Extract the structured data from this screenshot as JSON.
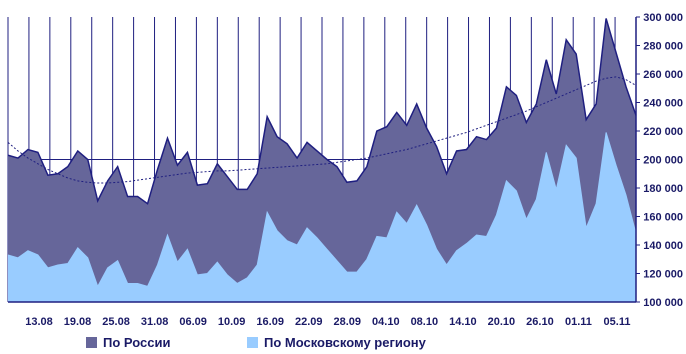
{
  "chart_data": {
    "type": "area",
    "title": "",
    "xlabel": "",
    "ylabel": "",
    "ylim": [
      100000,
      300000
    ],
    "yticks": [
      "100 000",
      "120 000",
      "140 000",
      "160 000",
      "180 000",
      "200 000",
      "220 000",
      "240 000",
      "260 000",
      "280 000",
      "300 000"
    ],
    "xticks": [
      "13.08",
      "19.08",
      "25.08",
      "31.08",
      "06.09",
      "10.09",
      "16.09",
      "22.09",
      "28.09",
      "04.10",
      "08.10",
      "14.10",
      "20.10",
      "26.10",
      "01.11",
      "05.11"
    ],
    "grid": "vertical lines and horizontal line at 200 000 in upper area",
    "legend_position": "bottom",
    "colors": {
      "russia": "#66669a",
      "moscow": "#99ccff",
      "outline": "#1f1f80",
      "trend": "#1f1f80"
    },
    "series": [
      {
        "name": "По России",
        "values": [
          203000,
          201000,
          207000,
          205000,
          189000,
          190000,
          195000,
          206000,
          200000,
          171000,
          185000,
          195000,
          174000,
          174000,
          169000,
          193000,
          215000,
          196000,
          205000,
          182000,
          183000,
          197000,
          188000,
          179000,
          179000,
          190000,
          230000,
          216000,
          211000,
          201000,
          212000,
          206000,
          200000,
          195000,
          184000,
          185000,
          195000,
          220000,
          223000,
          233000,
          224000,
          239000,
          222000,
          209000,
          190000,
          206000,
          207000,
          216000,
          214000,
          222000,
          251000,
          245000,
          226000,
          239000,
          270000,
          246000,
          284000,
          274000,
          228000,
          239000,
          299000,
          275000,
          251000,
          231000
        ]
      },
      {
        "name": "По Московскому региону",
        "values": [
          133000,
          131000,
          136000,
          133000,
          124000,
          126000,
          127000,
          138000,
          131000,
          111000,
          124000,
          129000,
          113000,
          113000,
          111000,
          126000,
          147000,
          128000,
          137000,
          119000,
          120000,
          128000,
          119000,
          113000,
          117000,
          126000,
          163000,
          150000,
          143000,
          140000,
          152000,
          145000,
          137000,
          129000,
          121000,
          121000,
          130000,
          146000,
          145000,
          163000,
          155000,
          168000,
          154000,
          137000,
          126000,
          136000,
          141000,
          147000,
          146000,
          161000,
          185000,
          178000,
          158000,
          172000,
          205000,
          179000,
          210000,
          201000,
          152000,
          169000,
          219000,
          196000,
          175000,
          148000
        ]
      },
      {
        "name": "",
        "style": "dotted trend line",
        "values": [
          212000,
          206000,
          201000,
          197000,
          193000,
          190000,
          187000,
          185000,
          184000,
          183500,
          183500,
          184000,
          184500,
          185500,
          186500,
          187500,
          188500,
          189500,
          190500,
          191000,
          191500,
          192000,
          192000,
          192500,
          193000,
          193500,
          194000,
          194500,
          195000,
          195500,
          196000,
          196500,
          197000,
          198000,
          199000,
          200000,
          201000,
          202500,
          204000,
          205500,
          207000,
          209000,
          211000,
          213000,
          215000,
          217000,
          219000,
          221500,
          224000,
          226500,
          229000,
          231500,
          234000,
          237000,
          240000,
          243000,
          246000,
          249000,
          252000,
          255000,
          257000,
          258000,
          256000,
          252000
        ]
      }
    ]
  },
  "legend": {
    "russia_label": "По России",
    "moscow_label": "По Московскому региону"
  }
}
